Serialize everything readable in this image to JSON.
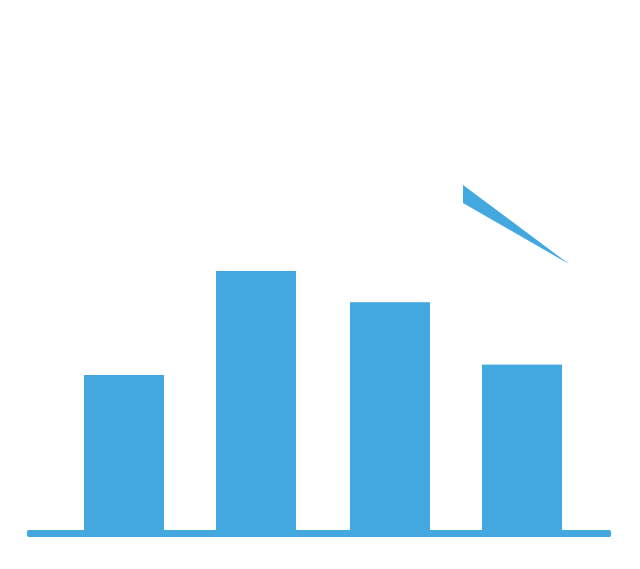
{
  "chart_data": {
    "type": "bar",
    "categories": [
      "",
      "",
      "",
      ""
    ],
    "values": [
      0.6,
      1.0,
      0.88,
      0.64
    ],
    "ylim": [
      0,
      1
    ],
    "title": "",
    "xlabel": "",
    "ylabel": "",
    "grid": false,
    "legend": "none",
    "has_trend_pointer": true
  },
  "colors": {
    "bar": "#42a8df",
    "background": "#ffffff"
  }
}
